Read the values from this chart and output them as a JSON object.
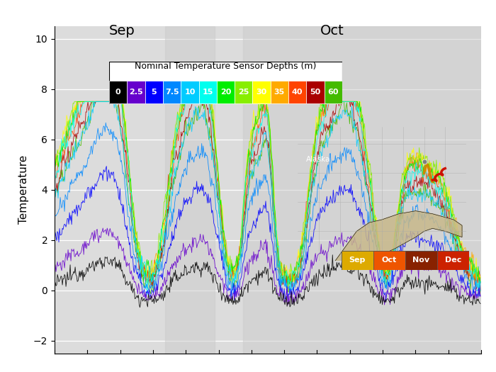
{
  "title": "",
  "ylabel": "Temperature",
  "xlabel": "",
  "ylim": [
    -2.5,
    10.5
  ],
  "xlim": [
    0,
    600
  ],
  "yticks": [
    -2,
    0,
    2,
    4,
    6,
    8,
    10
  ],
  "bg_color": "#dcdcdc",
  "sep_label": "Sep",
  "oct_label": "Oct",
  "colorbar_title": "Nominal Temperature Sensor Depths (m)",
  "depths": [
    0,
    2.5,
    5,
    7.5,
    10,
    15,
    20,
    25,
    30,
    35,
    40,
    50,
    60
  ],
  "depth_colors": [
    "#000000",
    "#6600cc",
    "#0000ff",
    "#0088ff",
    "#00ccff",
    "#00ffee",
    "#00ee00",
    "#88ee00",
    "#ffff00",
    "#ffaa00",
    "#ff4400",
    "#aa0000",
    "#44bb00"
  ],
  "depth_labels": [
    "0",
    "2.5",
    "5",
    "7.5",
    "10",
    "15",
    "20",
    "25",
    "30",
    "35",
    "40",
    "50",
    "60"
  ],
  "month_colors": [
    "#ddaa00",
    "#ee5500",
    "#882200",
    "#cc2200"
  ],
  "month_labels": [
    "Sep",
    "Oct",
    "Nov",
    "Dec"
  ],
  "inset_bg": "#607080",
  "shaded_color": "#cccccc",
  "shaded_alpha": 0.5,
  "n_steps": 600,
  "map_land_color": "#c8b88a",
  "map_line_color": "#ffffff",
  "ylabel_fontsize": 11,
  "tick_fontsize": 10,
  "month_label_fontsize": 14,
  "colorbar_title_fontsize": 9,
  "colorbar_label_fontsize": 8
}
